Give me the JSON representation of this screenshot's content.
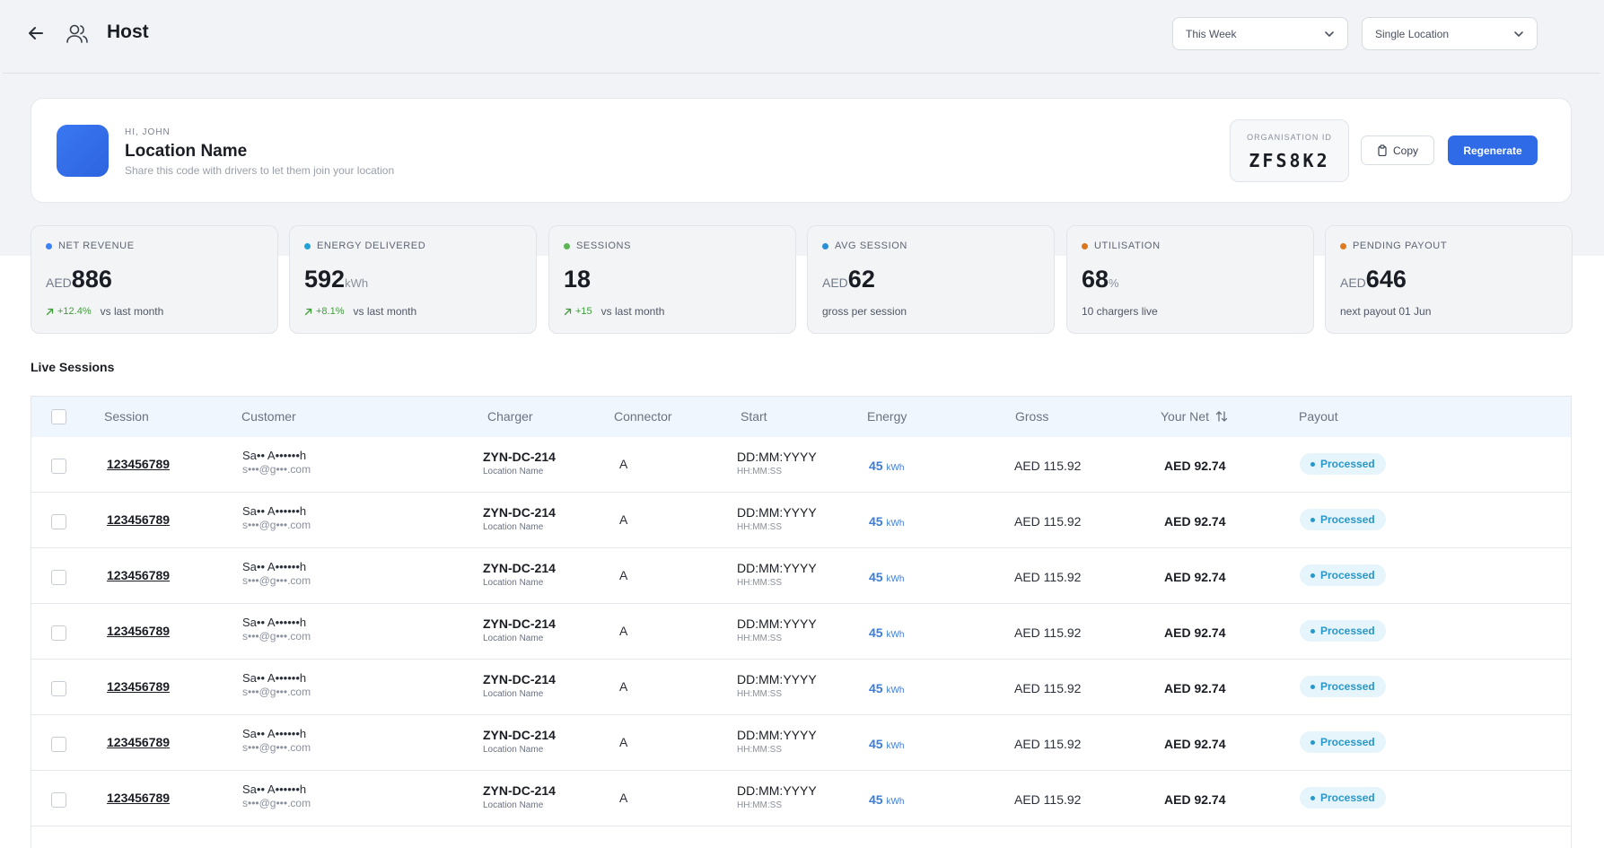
{
  "header": {
    "title": "Host",
    "period_select": "This Week",
    "location_select": "Single Location"
  },
  "location_card": {
    "greeting": "HI, JOHN",
    "name": "Location Name",
    "subtitle": "Share this code with drivers to let them join your location",
    "org_label": "ORGANISATION ID",
    "org_id": "ZFS8K2",
    "copy_label": "Copy",
    "regenerate_label": "Regenerate",
    "avatar_color": "#3a78f2"
  },
  "kpis": [
    {
      "label": "NET REVENUE",
      "prefix": "AED",
      "value": "886",
      "suffix": "",
      "delta": "+12.4%",
      "foot": "vs last month",
      "dot_color": "#3b82f6"
    },
    {
      "label": "ENERGY DELIVERED",
      "prefix": "",
      "value": "592",
      "suffix": "kWh",
      "delta": "+8.1%",
      "foot": "vs last month",
      "dot_color": "#22a3d8"
    },
    {
      "label": "SESSIONS",
      "prefix": "",
      "value": "18",
      "suffix": "",
      "delta": "+15",
      "foot": "vs last month",
      "dot_color": "#5ab552"
    },
    {
      "label": "AVG SESSION",
      "prefix": "AED",
      "value": "62",
      "suffix": "",
      "delta": "",
      "foot": "gross per session",
      "dot_color": "#2b8fd6"
    },
    {
      "label": "UTILISATION",
      "prefix": "",
      "value": "68",
      "suffix": "%",
      "delta": "",
      "foot": "10 chargers live",
      "dot_color": "#d9761f"
    },
    {
      "label": "PENDING PAYOUT",
      "prefix": "AED",
      "value": "646",
      "suffix": "",
      "delta": "",
      "foot": "next payout 01 Jun",
      "dot_color": "#e07a1f"
    }
  ],
  "live_sessions": {
    "title": "Live Sessions",
    "columns": [
      "Session",
      "Customer",
      "Charger",
      "Connector",
      "Start",
      "Energy",
      "Gross",
      "Your Net",
      "Payout"
    ],
    "rows": [
      {
        "session": "123456789",
        "customer_name": "Sa•• A••••••h",
        "customer_email": "s•••@g•••.com",
        "charger": "ZYN-DC-214",
        "charger_location": "Location Name",
        "connector": "A",
        "start_date": "DD:MM:YYYY",
        "start_time": "HH:MM:SS",
        "energy": "45",
        "energy_unit": "kWh",
        "gross": "AED 115.92",
        "net": "AED 92.74",
        "payout": "Processed"
      },
      {
        "session": "123456789",
        "customer_name": "Sa•• A••••••h",
        "customer_email": "s•••@g•••.com",
        "charger": "ZYN-DC-214",
        "charger_location": "Location Name",
        "connector": "A",
        "start_date": "DD:MM:YYYY",
        "start_time": "HH:MM:SS",
        "energy": "45",
        "energy_unit": "kWh",
        "gross": "AED 115.92",
        "net": "AED 92.74",
        "payout": "Processed"
      },
      {
        "session": "123456789",
        "customer_name": "Sa•• A••••••h",
        "customer_email": "s•••@g•••.com",
        "charger": "ZYN-DC-214",
        "charger_location": "Location Name",
        "connector": "A",
        "start_date": "DD:MM:YYYY",
        "start_time": "HH:MM:SS",
        "energy": "45",
        "energy_unit": "kWh",
        "gross": "AED 115.92",
        "net": "AED 92.74",
        "payout": "Processed"
      },
      {
        "session": "123456789",
        "customer_name": "Sa•• A••••••h",
        "customer_email": "s•••@g•••.com",
        "charger": "ZYN-DC-214",
        "charger_location": "Location Name",
        "connector": "A",
        "start_date": "DD:MM:YYYY",
        "start_time": "HH:MM:SS",
        "energy": "45",
        "energy_unit": "kWh",
        "gross": "AED 115.92",
        "net": "AED 92.74",
        "payout": "Processed"
      },
      {
        "session": "123456789",
        "customer_name": "Sa•• A••••••h",
        "customer_email": "s•••@g•••.com",
        "charger": "ZYN-DC-214",
        "charger_location": "Location Name",
        "connector": "A",
        "start_date": "DD:MM:YYYY",
        "start_time": "HH:MM:SS",
        "energy": "45",
        "energy_unit": "kWh",
        "gross": "AED 115.92",
        "net": "AED 92.74",
        "payout": "Processed"
      },
      {
        "session": "123456789",
        "customer_name": "Sa•• A••••••h",
        "customer_email": "s•••@g•••.com",
        "charger": "ZYN-DC-214",
        "charger_location": "Location Name",
        "connector": "A",
        "start_date": "DD:MM:YYYY",
        "start_time": "HH:MM:SS",
        "energy": "45",
        "energy_unit": "kWh",
        "gross": "AED 115.92",
        "net": "AED 92.74",
        "payout": "Processed"
      },
      {
        "session": "123456789",
        "customer_name": "Sa•• A••••••h",
        "customer_email": "s•••@g•••.com",
        "charger": "ZYN-DC-214",
        "charger_location": "Location Name",
        "connector": "A",
        "start_date": "DD:MM:YYYY",
        "start_time": "HH:MM:SS",
        "energy": "45",
        "energy_unit": "kWh",
        "gross": "AED 115.92",
        "net": "AED 92.74",
        "payout": "Processed"
      }
    ]
  },
  "colors": {
    "accent": "#2f6be6",
    "positive": "#3f9d3a",
    "energy": "#3b7dd8",
    "badge_text": "#2897c9",
    "badge_bg": "#e6f4fb"
  },
  "icons": {
    "back": "arrow-left-icon",
    "users": "users-icon",
    "chevron": "chevron-down-icon",
    "copy": "clipboard-icon",
    "sort": "sort-icon",
    "delta": "arrow-up-right-icon"
  }
}
